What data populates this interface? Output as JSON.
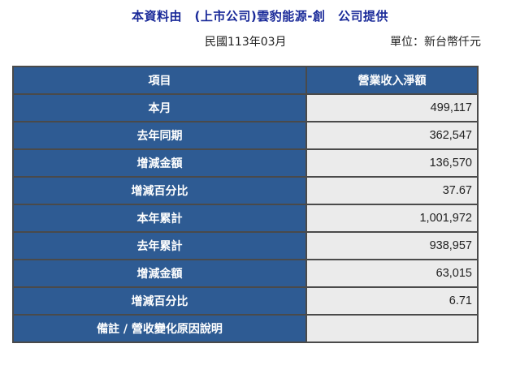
{
  "header": {
    "source_line": "本資料由　(上市公司)雲豹能源-創　公司提供",
    "period": "民國113年03月",
    "unit": "單位：新台幣仟元"
  },
  "table": {
    "col_item": "項目",
    "col_value": "營業收入淨額",
    "rows": [
      {
        "label": "本月",
        "value": "499,117"
      },
      {
        "label": "去年同期",
        "value": "362,547"
      },
      {
        "label": "增減金額",
        "value": "136,570"
      },
      {
        "label": "增減百分比",
        "value": "37.67"
      },
      {
        "label": "本年累計",
        "value": "1,001,972"
      },
      {
        "label": "去年累計",
        "value": "938,957"
      },
      {
        "label": "增減金額",
        "value": "63,015"
      },
      {
        "label": "增減百分比",
        "value": "6.71"
      },
      {
        "label": "備註 / 營收變化原因說明",
        "value": ""
      }
    ]
  },
  "colors": {
    "header_bg": "#2e5b93",
    "value_bg": "#ebebeb",
    "title_text": "#1a2a99"
  }
}
